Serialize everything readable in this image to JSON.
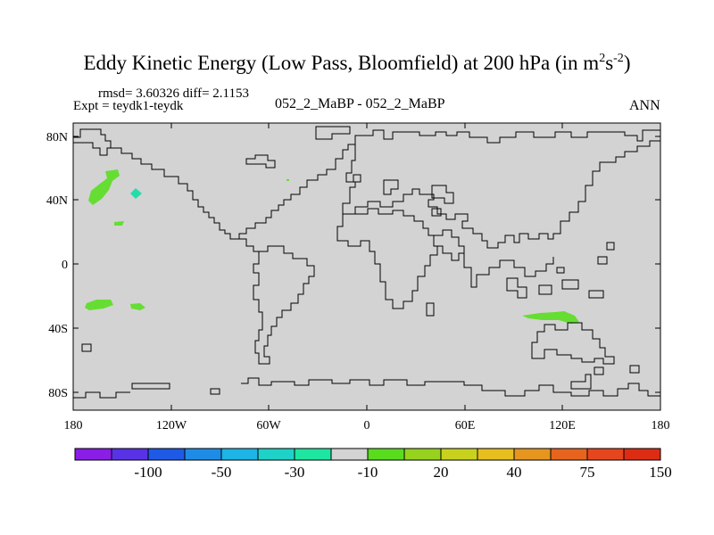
{
  "title": {
    "main": "Eddy Kinetic Energy (Low Pass, Bloomfield) at 200 hPa (in m",
    "sup1": "2",
    "mid": "s",
    "sup2": "-2",
    "close": ")"
  },
  "stats": "rmsd= 3.60326 diff= 2.1153",
  "expt": "Expt = teydk1-teydk",
  "center_label": "052_2_MaBP - 052_2_MaBP",
  "season": "ANN",
  "colors": {
    "ocean_land_fill": "#d3d3d3",
    "coast": "#000000",
    "green": "#66dd33",
    "teal": "#22ddaa"
  },
  "map": {
    "lon_ticks": [
      "180",
      "120W",
      "60W",
      "0",
      "60E",
      "120E",
      "180"
    ],
    "lat_ticks": [
      "80N",
      "40N",
      "0",
      "40S",
      "80S"
    ],
    "anomalies": [
      {
        "name": "north-pacific-green-anomaly",
        "color": "green"
      },
      {
        "name": "north-pacific-teal-anomaly",
        "color": "teal"
      },
      {
        "name": "hawaii-green-anomaly",
        "color": "green"
      },
      {
        "name": "south-pacific-green-anomaly-west",
        "color": "green"
      },
      {
        "name": "south-pacific-green-anomaly-east",
        "color": "green"
      },
      {
        "name": "indian-ocean-green-anomaly",
        "color": "green"
      }
    ]
  },
  "colorbar": {
    "colors": [
      "#8a1ee6",
      "#5a32e6",
      "#1e5ae6",
      "#1e8ce6",
      "#1eb4e6",
      "#1ed2c8",
      "#1ee6a0",
      "#d3d3d3",
      "#5adc1e",
      "#96d21e",
      "#c8d21e",
      "#e6be1e",
      "#e6961e",
      "#e6641e",
      "#e6461e",
      "#dc2d14"
    ],
    "labels": [
      "-100",
      "-50",
      "-30",
      "-10",
      "20",
      "40",
      "75",
      "150"
    ]
  }
}
